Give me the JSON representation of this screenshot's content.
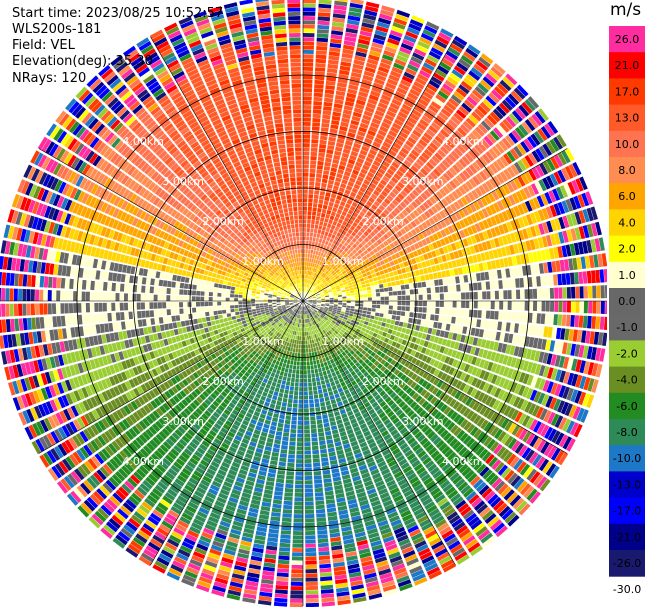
{
  "header": {
    "start_time": "Start time: 2023/08/25 10:52:57",
    "instrument": "WLS200s-181",
    "field": "Field: VEL",
    "elevation": "Elevation(deg): 35.30",
    "nrays": "NRays: 120"
  },
  "colorbar": {
    "unit": "m/s",
    "ticks": [
      "26.0",
      "21.0",
      "17.0",
      "13.0",
      "10.0",
      "8.0",
      "6.0",
      "4.0",
      "2.0",
      "1.0",
      "0.0",
      "-1.0",
      "-2.0",
      "-4.0",
      "-6.0",
      "-8.0",
      "-10.0",
      "-13.0",
      "-17.0",
      "-21.0",
      "-26.0",
      "-30.0"
    ],
    "colors": [
      "#ff2da0",
      "#ff0000",
      "#ff3a00",
      "#ff5a28",
      "#ff7450",
      "#ff8c50",
      "#ffa500",
      "#ffd400",
      "#ffff00",
      "#ffffd0",
      "#686868",
      "#696969",
      "#9acd32",
      "#6b8e23",
      "#228b22",
      "#2e8b57",
      "#1e78c8",
      "#0000cd",
      "#0000ff",
      "#00008b",
      "#191970"
    ]
  },
  "chart_data": {
    "type": "heatmap",
    "projection": "polar-ppi",
    "field": "VEL",
    "units": "m/s",
    "nrays": 120,
    "range_rings_km": [
      1.0,
      2.0,
      3.0,
      4.0
    ],
    "ring_labels": [
      "1.00km",
      "2.00km",
      "3.00km",
      "4.00km"
    ],
    "max_range_km": 5.4,
    "vmin": -30.0,
    "vmax": 30.0,
    "pattern": {
      "azimuth_of_max_positive_deg": 0,
      "max_positive_ms": 13.0,
      "max_negative_ms": -10.0,
      "noise_beyond_km": 4.2
    }
  }
}
